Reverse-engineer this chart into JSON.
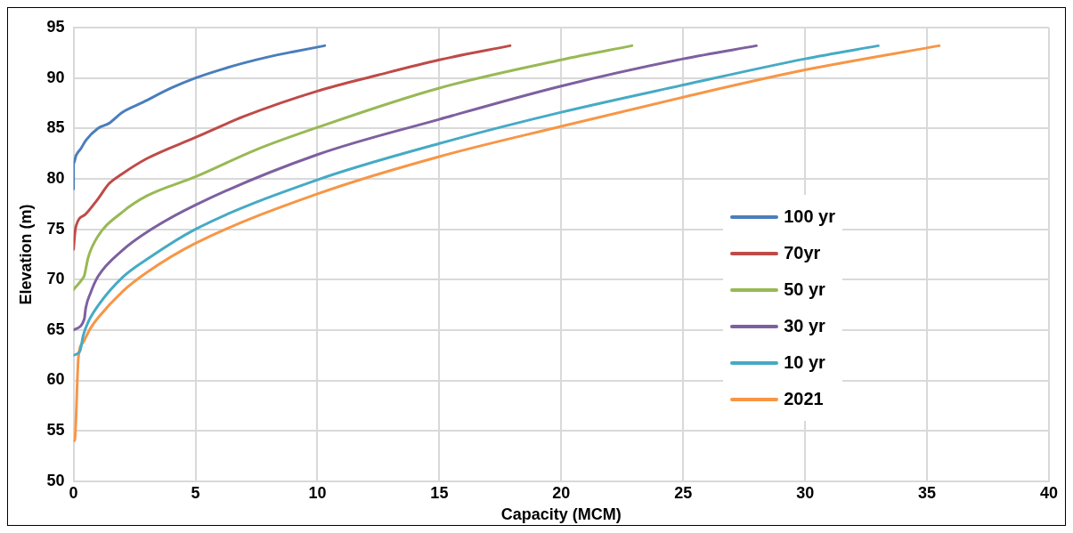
{
  "chart_data": {
    "type": "line",
    "xlabel": "Capacity (MCM)",
    "ylabel": "Elevation (m)",
    "xlim": [
      0,
      40
    ],
    "xticks": [
      0,
      5,
      10,
      15,
      20,
      25,
      30,
      35,
      40
    ],
    "ylim": [
      50,
      95
    ],
    "yticks": [
      50,
      55,
      60,
      65,
      70,
      75,
      80,
      85,
      90,
      95
    ],
    "grid": true,
    "legend": "right",
    "marker": "none",
    "line_style": "solid",
    "series": [
      {
        "name": "100 yr",
        "color": "#4a7ebb",
        "x": [
          0,
          0,
          0.1,
          0.3,
          0.5,
          1,
          1.45,
          2,
          2.85,
          4,
          5,
          6,
          7,
          8,
          9,
          10.3
        ],
        "values": [
          79,
          81.5,
          82.3,
          83,
          83.8,
          85,
          85.5,
          86.6,
          87.6,
          89,
          90,
          90.8,
          91.5,
          92.1,
          92.6,
          93.2
        ]
      },
      {
        "name": "70yr",
        "color": "#be4b48",
        "x": [
          0,
          0.05,
          0.1,
          0.5,
          1,
          1.45,
          2,
          3,
          5,
          7,
          10,
          12.5,
          15,
          17.9
        ],
        "values": [
          73,
          74.5,
          75.3,
          76.5,
          78,
          79.5,
          80.5,
          82,
          84.1,
          86.2,
          88.7,
          90.3,
          91.8,
          93.2
        ]
      },
      {
        "name": "50 yr",
        "color": "#98b954",
        "x": [
          0,
          0.37,
          0.44,
          0.6,
          1,
          2,
          3,
          5,
          7.5,
          10,
          15,
          20,
          22.9
        ],
        "values": [
          69,
          70.1,
          70.4,
          72.2,
          74.3,
          76.7,
          78.3,
          80.2,
          82.9,
          85.1,
          89,
          91.8,
          93.2
        ]
      },
      {
        "name": "30 yr",
        "color": "#7d60a0",
        "x": [
          0,
          0.44,
          0.5,
          0.7,
          1,
          2,
          3,
          5,
          10,
          15,
          20,
          25,
          28
        ],
        "values": [
          65,
          66.1,
          67.2,
          68.7,
          70.3,
          72.9,
          74.7,
          77.4,
          82.4,
          85.9,
          89.2,
          91.9,
          93.2
        ]
      },
      {
        "name": "10 yr",
        "color": "#46aac5",
        "x": [
          0,
          0.26,
          0.4,
          0.6,
          1,
          2,
          3,
          5,
          10,
          15,
          20,
          25,
          30,
          33
        ],
        "values": [
          62.5,
          62.9,
          64.5,
          65.8,
          67.4,
          70.2,
          72,
          75,
          79.9,
          83.5,
          86.6,
          89.3,
          91.9,
          93.2
        ]
      },
      {
        "name": "2021",
        "color": "#f79646",
        "x": [
          0,
          0.05,
          0.2,
          0.4,
          0.7,
          1,
          2,
          3,
          5,
          10,
          15,
          20,
          25,
          30,
          35.5
        ],
        "values": [
          54,
          54.1,
          62.3,
          63.8,
          65.2,
          66.2,
          68.8,
          70.7,
          73.6,
          78.5,
          82.2,
          85.2,
          88.1,
          90.8,
          93.2
        ]
      }
    ]
  }
}
